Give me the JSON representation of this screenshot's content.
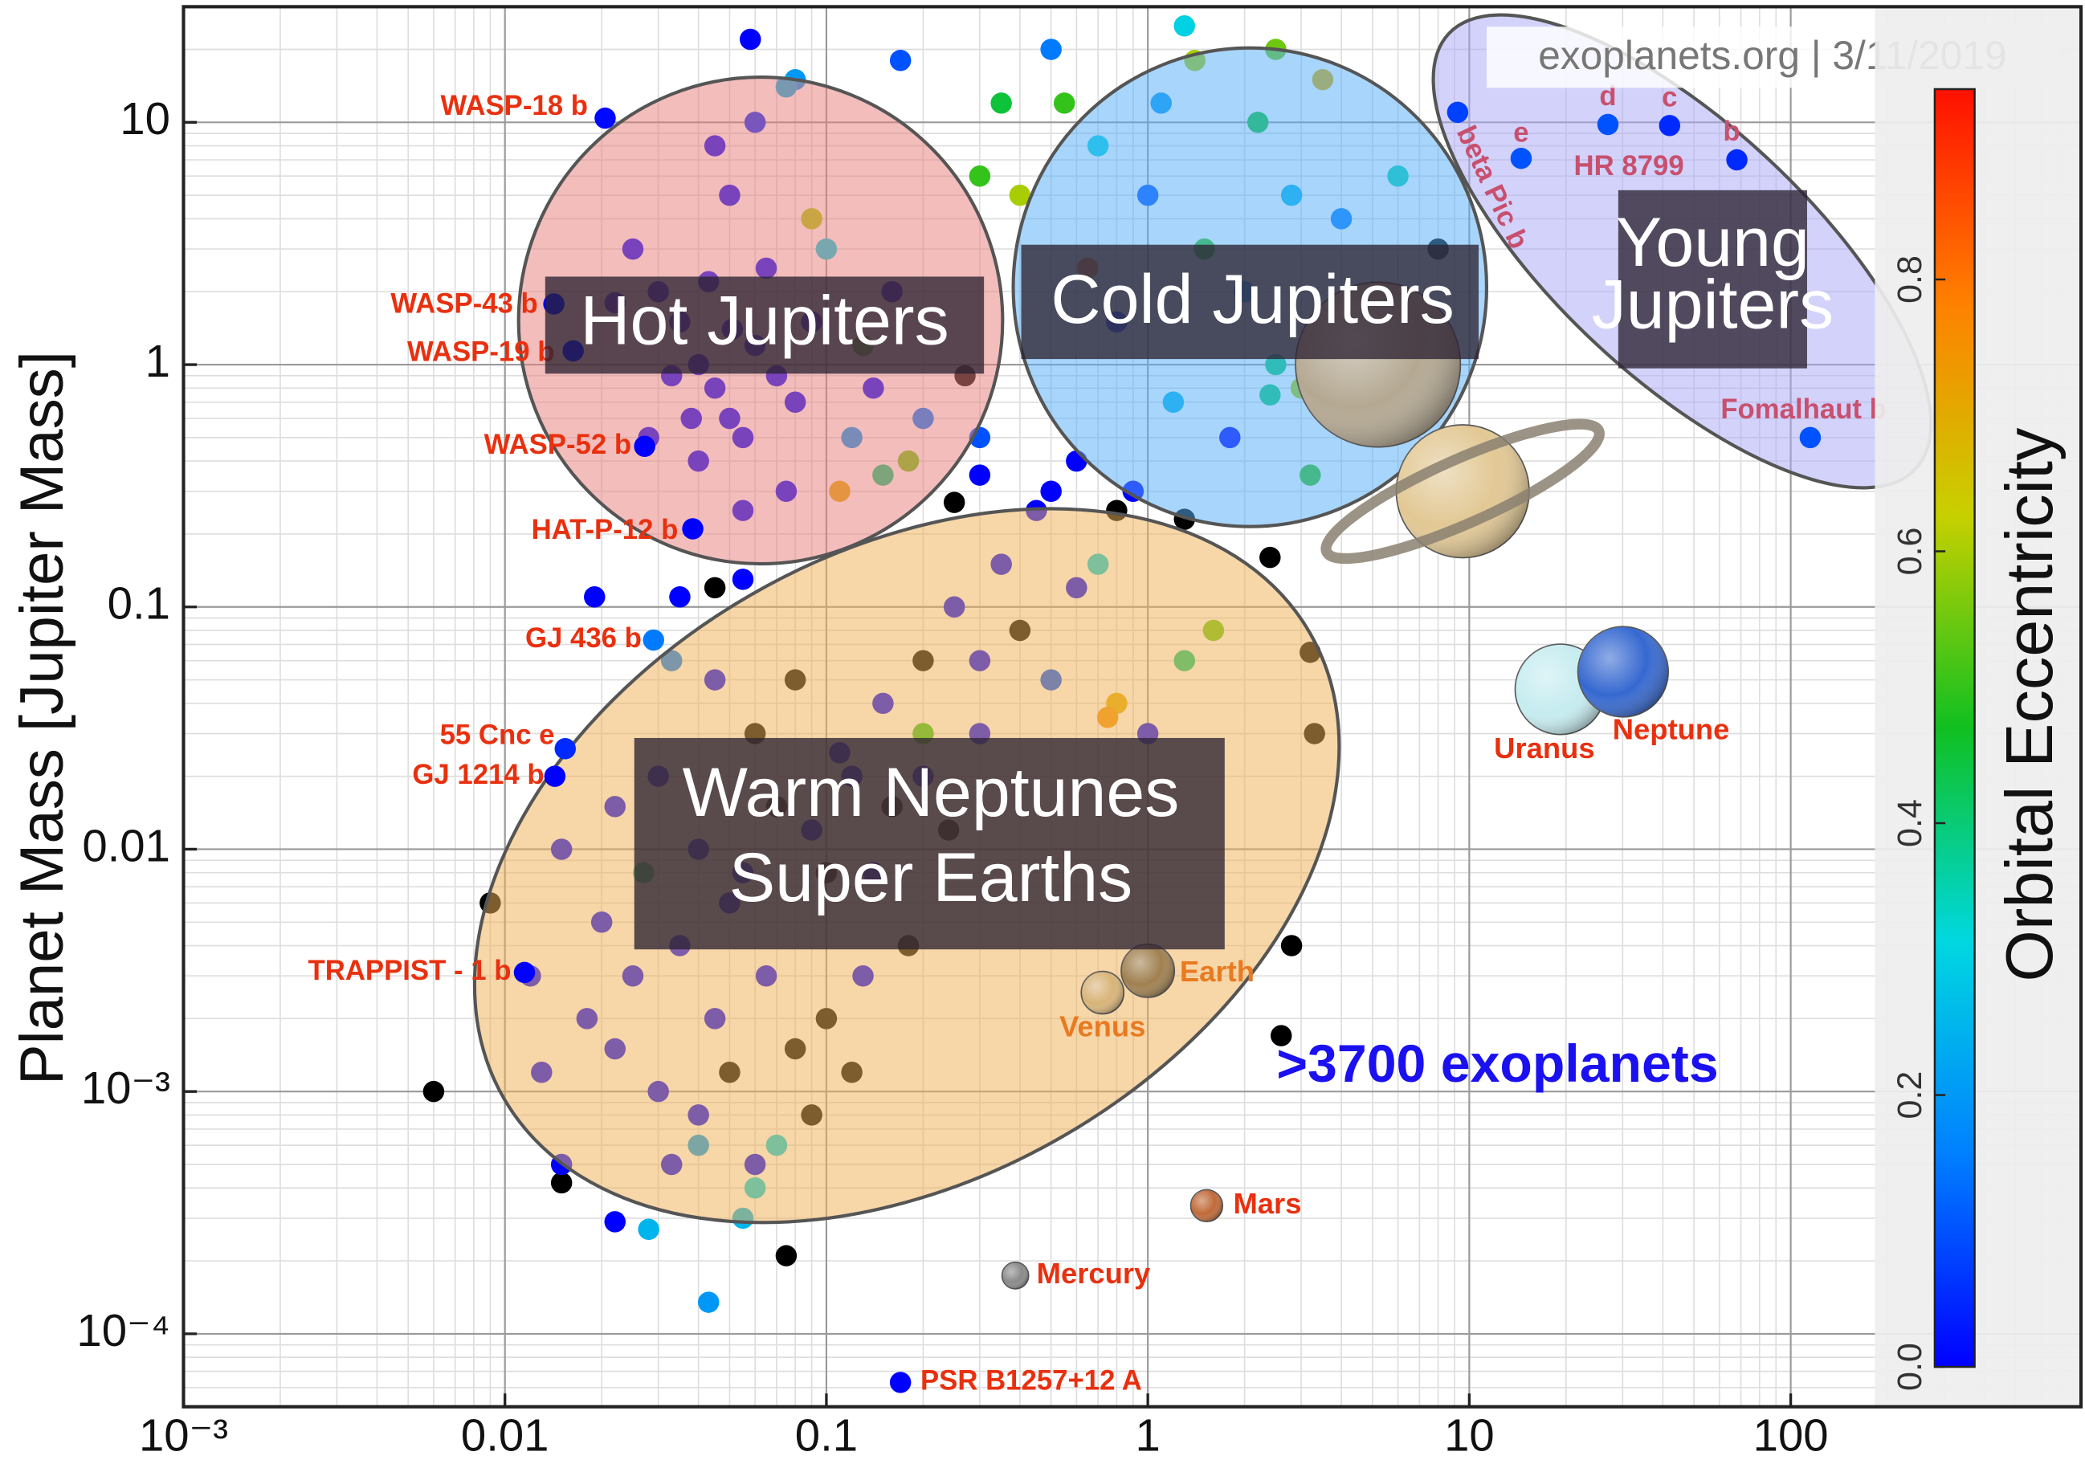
{
  "chart_data": {
    "type": "scatter",
    "header": "exoplanets.org | 3/11/2019",
    "y_label": "Planet Mass [Jupiter Mass]",
    "annotation": ">3700 exoplanets",
    "system_label": "HR 8799",
    "log_x": true,
    "log_y": true,
    "grid": true,
    "xlim": [
      0.001,
      800
    ],
    "xticks": [
      {
        "value": 0.001,
        "label": "10⁻³"
      },
      0.01,
      0.1,
      1,
      10,
      100
    ],
    "ylim": [
      5e-05,
      30
    ],
    "yticks": [
      {
        "value": 0.0001,
        "label": "10⁻⁴"
      },
      {
        "value": 0.001,
        "label": "10⁻³"
      },
      0.01,
      0.1,
      1,
      10
    ],
    "colorbar": {
      "label": "Orbital Eccentricity",
      "lim": [
        0,
        0.94
      ],
      "ticks": [
        {
          "value": 0,
          "label": "0.0"
        },
        0.2,
        0.4,
        0.6,
        0.8
      ],
      "colormap": [
        "#0000ff",
        "#0080ff",
        "#00d8e0",
        "#10c020",
        "#c8d000",
        "#ff8000",
        "#ff1000"
      ]
    },
    "regions": [
      {
        "label_lines": [
          "Hot Jupiters"
        ],
        "color": "#e8807f"
      },
      {
        "label_lines": [
          "Cold Jupiters"
        ],
        "color": "#58aef8"
      },
      {
        "label_lines": [
          "Young",
          "Jupiters"
        ],
        "color": "#a8a8f8"
      },
      {
        "label_lines": [
          "Warm Neptunes",
          "Super Earths"
        ],
        "color": "#f0b058"
      }
    ],
    "x": [
      0.025,
      0.03,
      0.035,
      0.04,
      0.045,
      0.05,
      0.055,
      0.04,
      0.06,
      0.065,
      0.07,
      0.08,
      0.09,
      0.1,
      0.12,
      0.05,
      0.045,
      0.06,
      0.08,
      0.11,
      0.13,
      0.14,
      0.075,
      0.055,
      0.028,
      0.022,
      0.033,
      0.043,
      0.051,
      0.038,
      0.15,
      0.09,
      0.16,
      0.058,
      0.075,
      0.17,
      0.27,
      0.2,
      0.18,
      0.7,
      1,
      1.5,
      2,
      2.5,
      3,
      4,
      5,
      0.8,
      1.2,
      1.8,
      2.2,
      3.5,
      1.1,
      0.6,
      0.9,
      6,
      7,
      8,
      0.5,
      1.4,
      2.8,
      4.5,
      3.2,
      0.65,
      0.45,
      0.55,
      1.3,
      2.5,
      0.3,
      0.4,
      0.35,
      0.3,
      0.5,
      0.8,
      1.3,
      2.4,
      0.3,
      0.25,
      0.015,
      0.02,
      0.025,
      0.03,
      0.04,
      0.05,
      0.06,
      0.07,
      0.08,
      0.1,
      0.12,
      0.15,
      0.2,
      0.25,
      0.3,
      0.4,
      0.5,
      0.6,
      0.7,
      0.8,
      1,
      1.3,
      1.6,
      0.018,
      0.022,
      0.03,
      0.04,
      0.05,
      0.06,
      0.08,
      0.1,
      0.13,
      0.18,
      0.035,
      0.045,
      0.055,
      0.065,
      0.09,
      0.11,
      0.14,
      0.16,
      0.2,
      0.24,
      0.3,
      0.35,
      0.009,
      0.012,
      0.013,
      0.045,
      0.033,
      0.022,
      0.027,
      0.04,
      0.06,
      0.055,
      0.033,
      2.8,
      2.6,
      3.2,
      3.3,
      0.09,
      0.12,
      0.2,
      0.75,
      0.07,
      0.006,
      0.015,
      0.015,
      0.022,
      0.028,
      0.043,
      0.075,
      0.019,
      0.035,
      0.045,
      0.055,
      9.5,
      2.4
    ],
    "values": [
      3,
      2,
      1.5,
      1,
      0.8,
      0.6,
      0.5,
      0.4,
      1.2,
      2.5,
      0.9,
      0.7,
      1.5,
      3,
      0.5,
      5,
      8,
      10,
      15,
      0.3,
      1.2,
      0.8,
      0.3,
      0.25,
      0.5,
      1.8,
      0.9,
      2.2,
      1.4,
      0.6,
      0.35,
      4,
      2,
      22,
      14,
      18,
      0.9,
      0.6,
      0.4,
      8,
      5,
      3,
      2,
      1,
      0.8,
      4,
      2,
      1.5,
      0.7,
      0.5,
      10,
      15,
      12,
      0.4,
      0.3,
      6,
      0.9,
      3,
      20,
      18,
      5,
      1.5,
      0.35,
      2.5,
      0.25,
      12,
      25,
      20,
      6,
      5,
      12,
      0.35,
      0.3,
      0.25,
      0.23,
      0.16,
      0.5,
      0.27,
      0.01,
      0.005,
      0.003,
      0.02,
      0.01,
      0.006,
      0.03,
      0.015,
      0.05,
      0.008,
      0.02,
      0.04,
      0.06,
      0.1,
      0.03,
      0.08,
      0.05,
      0.12,
      0.15,
      0.04,
      0.03,
      0.06,
      0.08,
      0.002,
      0.0015,
      0.001,
      0.0008,
      0.0012,
      0.0005,
      0.0015,
      0.002,
      0.003,
      0.004,
      0.004,
      0.002,
      0.008,
      0.003,
      0.012,
      0.025,
      0.008,
      0.015,
      0.02,
      0.012,
      0.06,
      0.15,
      0.006,
      0.003,
      0.0012,
      0.05,
      0.06,
      0.015,
      0.008,
      0.0006,
      0.0004,
      0.0003,
      0.0005,
      0.004,
      0.0017,
      0.065,
      0.03,
      0.0008,
      0.0012,
      0.03,
      0.035,
      0.0006,
      0.001,
      0.00042,
      0.0005,
      0.00029,
      0.00027,
      0.000135,
      0.00021,
      0.11,
      0.11,
      0.12,
      0.13,
      0.3,
      0.75
    ],
    "eccentricity": [
      0,
      0,
      0,
      0,
      0,
      0,
      0,
      0,
      0,
      0,
      0,
      0,
      0,
      0.3,
      0.2,
      0,
      0,
      0.05,
      0.2,
      0.7,
      0.5,
      0,
      0,
      0,
      0,
      0,
      0,
      0,
      0,
      0,
      0.4,
      0.6,
      0,
      0,
      0.25,
      0.1,
      null,
      0.15,
      0.55,
      0.3,
      0.1,
      0.5,
      0.2,
      0.4,
      0.6,
      0.15,
      0.3,
      0.05,
      0.25,
      0,
      0.45,
      0.7,
      0.2,
      0,
      0,
      0.35,
      0.1,
      null,
      0.15,
      0.6,
      0.25,
      0.05,
      0.5,
      0.8,
      0,
      0.5,
      0.3,
      0.55,
      0.5,
      0.6,
      0.45,
      0,
      0,
      null,
      null,
      null,
      0.1,
      null,
      0,
      0,
      0,
      0,
      0,
      0,
      null,
      null,
      null,
      null,
      0,
      0,
      null,
      0,
      0,
      null,
      0.1,
      0,
      0.3,
      0.7,
      0,
      0.4,
      0.55,
      0,
      0,
      0,
      0,
      null,
      0,
      null,
      null,
      0,
      null,
      0,
      0,
      0,
      0,
      0,
      0,
      0,
      null,
      0,
      null,
      0,
      0,
      null,
      0,
      0,
      0,
      0.15,
      0,
      0.4,
      0.2,
      0.3,
      0.25,
      0,
      null,
      null,
      null,
      null,
      null,
      null,
      0.5,
      0.75,
      0.3,
      null,
      null,
      0,
      0,
      0.25,
      0.2,
      null,
      0,
      0,
      null,
      0,
      null,
      0.4
    ],
    "labeled_planets": [
      {
        "label": "WASP-18 b",
        "x": 0.0205,
        "y": 10.4,
        "eccentricity": 0.01
      },
      {
        "label": "WASP-43 b",
        "x": 0.0142,
        "y": 1.78,
        "eccentricity": 0
      },
      {
        "label": "WASP-19 b",
        "x": 0.0163,
        "y": 1.14,
        "eccentricity": 0
      },
      {
        "label": "WASP-52 b",
        "x": 0.0272,
        "y": 0.46,
        "eccentricity": 0
      },
      {
        "label": "HAT-P-12 b",
        "x": 0.0384,
        "y": 0.21,
        "eccentricity": 0
      },
      {
        "label": "GJ 436 b",
        "x": 0.029,
        "y": 0.073,
        "eccentricity": 0.15
      },
      {
        "label": "55 Cnc e",
        "x": 0.0154,
        "y": 0.026,
        "eccentricity": 0.05
      },
      {
        "label": "GJ 1214 b",
        "x": 0.0143,
        "y": 0.02,
        "eccentricity": 0
      },
      {
        "label": "TRAPPIST - 1 b",
        "x": 0.0115,
        "y": 0.0031,
        "eccentricity": 0
      },
      {
        "label": "PSR B1257+12 A",
        "x": 0.17,
        "y": 6.3e-05,
        "eccentricity": 0
      },
      {
        "label": "beta Pic b",
        "x": 9.2,
        "y": 11,
        "eccentricity": 0.08
      },
      {
        "label": "e",
        "x": 14.5,
        "y": 7.1,
        "eccentricity": 0.1
      },
      {
        "label": "d",
        "x": 27,
        "y": 9.8,
        "eccentricity": 0.1
      },
      {
        "label": "c",
        "x": 42,
        "y": 9.7,
        "eccentricity": 0.05
      },
      {
        "label": "b",
        "x": 68,
        "y": 7,
        "eccentricity": 0.05
      },
      {
        "label": "Fomalhaut b",
        "x": 115,
        "y": 0.5,
        "eccentricity": 0.1
      }
    ],
    "solar_system": [
      {
        "name": "Mercury",
        "x": 0.387,
        "y": 0.000174,
        "color": "#8a8a8a"
      },
      {
        "name": "Venus",
        "x": 0.723,
        "y": 0.00256,
        "color": "#d8b478"
      },
      {
        "name": "Earth",
        "x": 1,
        "y": 0.00315,
        "color": "#a08050"
      },
      {
        "name": "Mars",
        "x": 1.524,
        "y": 0.000338,
        "color": "#c06a38"
      },
      {
        "x": 5.2,
        "y": 1,
        "color": "#b4a892"
      },
      {
        "x": 9.54,
        "y": 0.3,
        "color": "#e2c894"
      },
      {
        "name": "Uranus",
        "x": 19.2,
        "y": 0.0457,
        "color": "#c6ecf0"
      },
      {
        "name": "Neptune",
        "x": 30.1,
        "y": 0.054,
        "color": "#3568d0"
      }
    ]
  }
}
